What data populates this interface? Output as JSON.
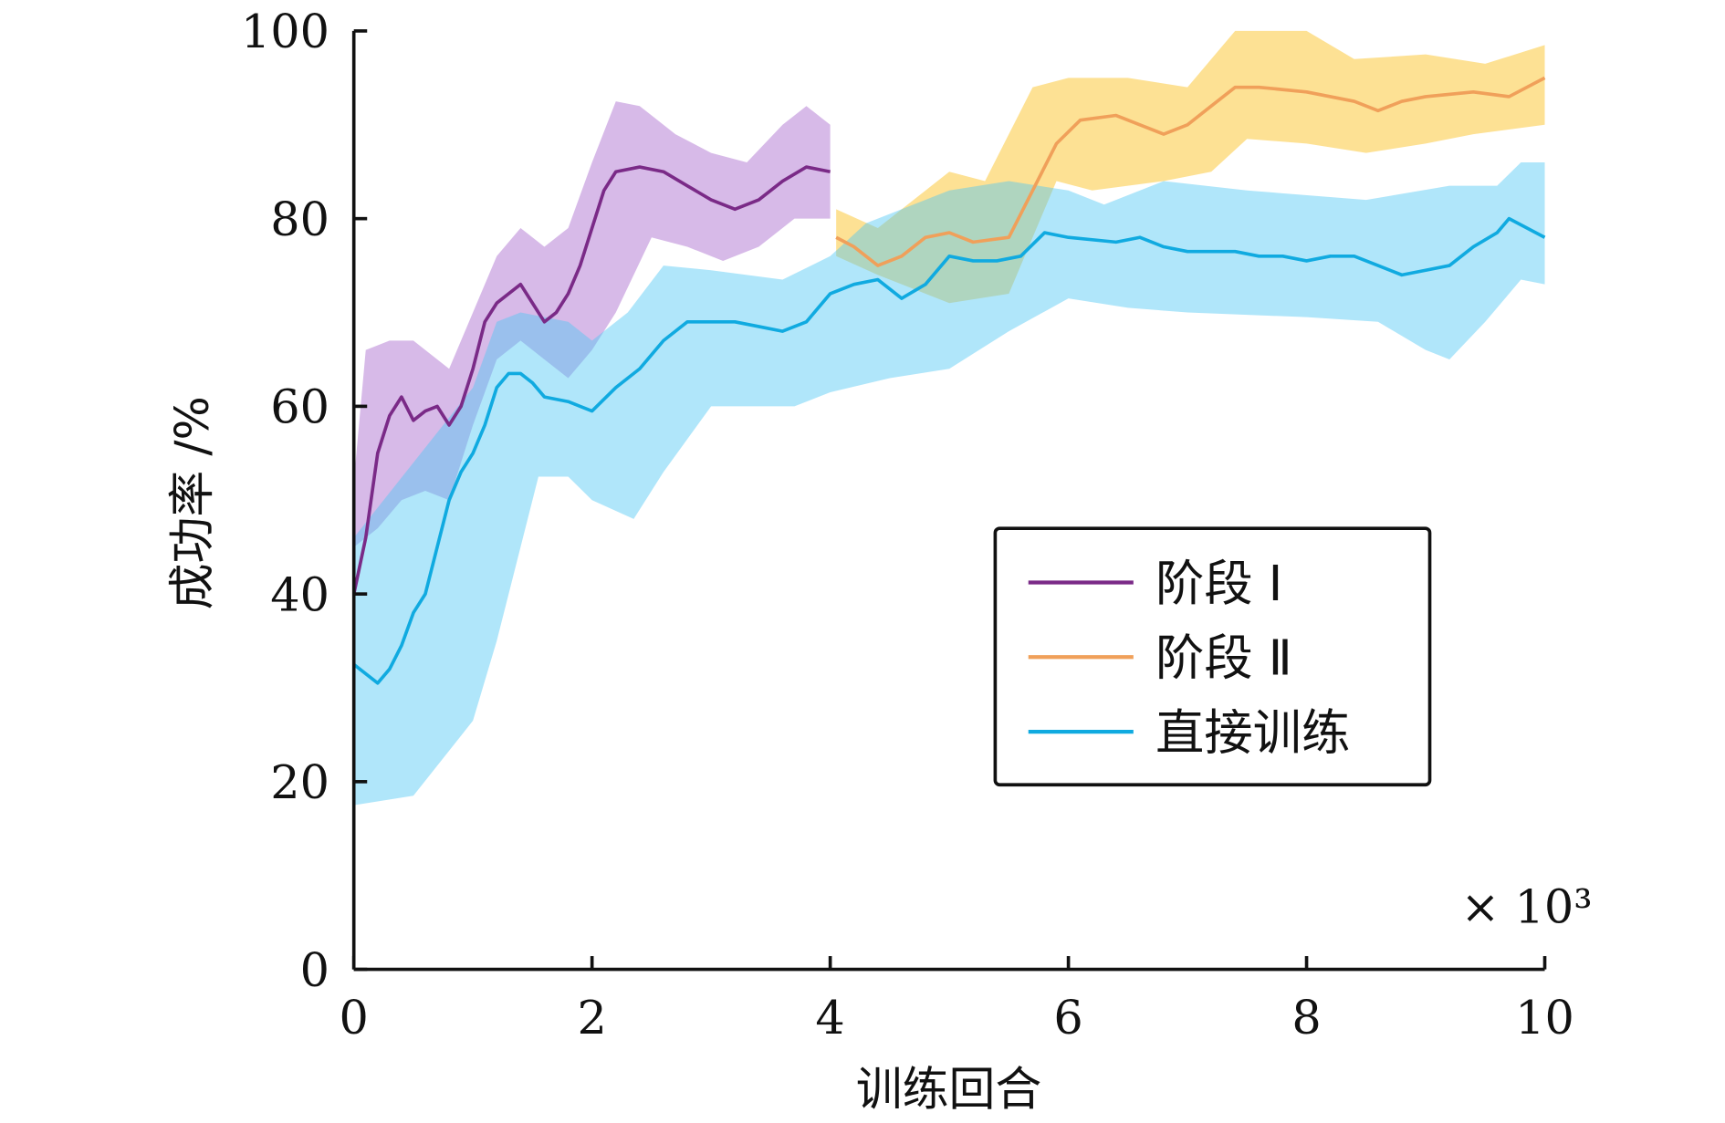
{
  "chart_data": {
    "type": "line",
    "title": "",
    "xlabel": "训练回合",
    "ylabel": "成功率 /%",
    "x_multiplier": "× 10³",
    "xlim": [
      0,
      10
    ],
    "ylim": [
      0,
      100
    ],
    "xticks": [
      "0",
      "2",
      "4",
      "6",
      "8",
      "10"
    ],
    "yticks": [
      "0",
      "20",
      "40",
      "60",
      "80",
      "100"
    ],
    "grid": false,
    "legend_position": "center-right",
    "series": [
      {
        "name": "阶段 Ⅰ",
        "color": "#7a2a87",
        "band_color": "#a05ac8",
        "x": [
          0,
          0.1,
          0.2,
          0.3,
          0.4,
          0.5,
          0.6,
          0.7,
          0.8,
          0.9,
          1.0,
          1.1,
          1.2,
          1.3,
          1.4,
          1.5,
          1.6,
          1.7,
          1.8,
          1.9,
          2.0,
          2.1,
          2.2,
          2.4,
          2.6,
          2.8,
          3.0,
          3.2,
          3.4,
          3.6,
          3.8,
          4.0
        ],
        "y": [
          40,
          46,
          55,
          59,
          61,
          58.5,
          59.5,
          60,
          58,
          60,
          64,
          69,
          71,
          72,
          73,
          71,
          69,
          70,
          72,
          75,
          79,
          83,
          85,
          85.5,
          85,
          83.5,
          82,
          81,
          82,
          84,
          85.5,
          85
        ],
        "band_upper": {
          "x": [
            0,
            0.1,
            0.3,
            0.5,
            0.8,
            1.0,
            1.2,
            1.4,
            1.6,
            1.8,
            2.0,
            2.2,
            2.4,
            2.7,
            3.0,
            3.3,
            3.6,
            3.8,
            4.0
          ],
          "y": [
            52,
            66,
            67,
            67,
            64,
            70,
            76,
            79,
            77,
            79,
            86,
            92.5,
            92,
            89,
            87,
            86,
            90,
            92,
            90
          ]
        },
        "band_lower": {
          "x": [
            0,
            0.2,
            0.4,
            0.6,
            0.8,
            1.0,
            1.2,
            1.4,
            1.6,
            1.8,
            2.0,
            2.2,
            2.5,
            2.8,
            3.1,
            3.4,
            3.7,
            4.0
          ],
          "y": [
            45,
            47,
            50,
            51,
            50,
            58,
            65,
            67,
            65,
            63,
            66,
            70,
            78,
            77,
            75.5,
            77,
            80,
            80
          ]
        }
      },
      {
        "name": "阶段 Ⅱ",
        "color": "#f0a05a",
        "band_color": "#fcc93c",
        "x": [
          4.05,
          4.2,
          4.4,
          4.6,
          4.8,
          5.0,
          5.2,
          5.5,
          5.7,
          5.9,
          6.1,
          6.4,
          6.6,
          6.8,
          7.0,
          7.2,
          7.4,
          7.6,
          8.0,
          8.2,
          8.4,
          8.6,
          8.8,
          9.0,
          9.4,
          9.7,
          10
        ],
        "y": [
          78,
          77,
          75,
          76,
          78,
          78.5,
          77.5,
          78,
          83,
          88,
          90.5,
          91,
          90,
          89,
          90,
          92,
          94,
          94,
          93.5,
          93,
          92.5,
          91.5,
          92.5,
          93,
          93.5,
          93,
          95
        ],
        "band_upper": {
          "x": [
            4.05,
            4.4,
            4.6,
            5.0,
            5.3,
            5.7,
            6.0,
            6.5,
            7.0,
            7.4,
            8.0,
            8.4,
            9.0,
            9.5,
            10
          ],
          "y": [
            81,
            79,
            81,
            85,
            84,
            94,
            95,
            95,
            94,
            100,
            100,
            97,
            97.5,
            96.5,
            98.5
          ]
        },
        "band_lower": {
          "x": [
            4.05,
            4.4,
            4.6,
            5.0,
            5.5,
            5.9,
            6.2,
            6.8,
            7.2,
            7.5,
            8.0,
            8.5,
            9.0,
            9.4,
            10
          ],
          "y": [
            76,
            74,
            73,
            71,
            72,
            84,
            83,
            84,
            85,
            88.5,
            88,
            87,
            88,
            89,
            90
          ]
        }
      },
      {
        "name": "直接训练",
        "color": "#10aae0",
        "band_color": "#50c8f5",
        "x": [
          0,
          0.1,
          0.2,
          0.3,
          0.4,
          0.5,
          0.6,
          0.7,
          0.8,
          0.9,
          1.0,
          1.1,
          1.2,
          1.3,
          1.4,
          1.5,
          1.6,
          1.8,
          2.0,
          2.2,
          2.4,
          2.6,
          2.8,
          3.0,
          3.2,
          3.4,
          3.6,
          3.8,
          4.0,
          4.2,
          4.4,
          4.6,
          4.8,
          5.0,
          5.2,
          5.4,
          5.6,
          5.8,
          6.0,
          6.4,
          6.6,
          6.8,
          7.0,
          7.2,
          7.4,
          7.6,
          7.8,
          8.0,
          8.2,
          8.4,
          8.6,
          8.8,
          9.0,
          9.2,
          9.4,
          9.6,
          9.7,
          10
        ],
        "y": [
          32.5,
          31.5,
          30.5,
          32,
          34.5,
          38,
          40,
          45,
          50,
          53,
          55,
          58,
          62,
          63.5,
          63.5,
          62.5,
          61,
          60.5,
          59.5,
          62,
          64,
          67,
          69,
          69,
          69,
          68.5,
          68,
          69,
          72,
          73,
          73.5,
          71.5,
          73,
          76,
          75.5,
          75.5,
          76,
          78.5,
          78,
          77.5,
          78,
          77,
          76.5,
          76.5,
          76.5,
          76,
          76,
          75.5,
          76,
          76,
          75,
          74,
          74.5,
          75,
          77,
          78.5,
          80,
          78
        ],
        "band_upper": {
          "x": [
            0,
            0.5,
            1.0,
            1.2,
            1.4,
            1.8,
            2.0,
            2.3,
            2.6,
            3.0,
            3.6,
            4.0,
            4.3,
            5.0,
            5.5,
            6.0,
            6.3,
            6.8,
            7.5,
            8.5,
            9.2,
            9.6,
            9.8,
            10
          ],
          "y": [
            46,
            54,
            62,
            69,
            70,
            69,
            67,
            70,
            75,
            74.5,
            73.5,
            76,
            79.5,
            83,
            84,
            83,
            81.5,
            84,
            83,
            82,
            83.5,
            83.5,
            86,
            86
          ]
        },
        "band_lower": {
          "x": [
            0,
            0.5,
            1.0,
            1.2,
            1.55,
            1.8,
            2.0,
            2.35,
            2.6,
            3.0,
            3.7,
            4.0,
            4.5,
            5.0,
            5.5,
            6.0,
            6.5,
            7.0,
            8.0,
            8.6,
            9.0,
            9.2,
            9.5,
            9.8,
            10
          ],
          "y": [
            17.5,
            18.5,
            26.5,
            35,
            52.5,
            52.5,
            50,
            48,
            53,
            60,
            60,
            61.5,
            63,
            64,
            68,
            71.5,
            70.5,
            70,
            69.5,
            69,
            66,
            65,
            69,
            73.5,
            73
          ]
        }
      }
    ]
  }
}
